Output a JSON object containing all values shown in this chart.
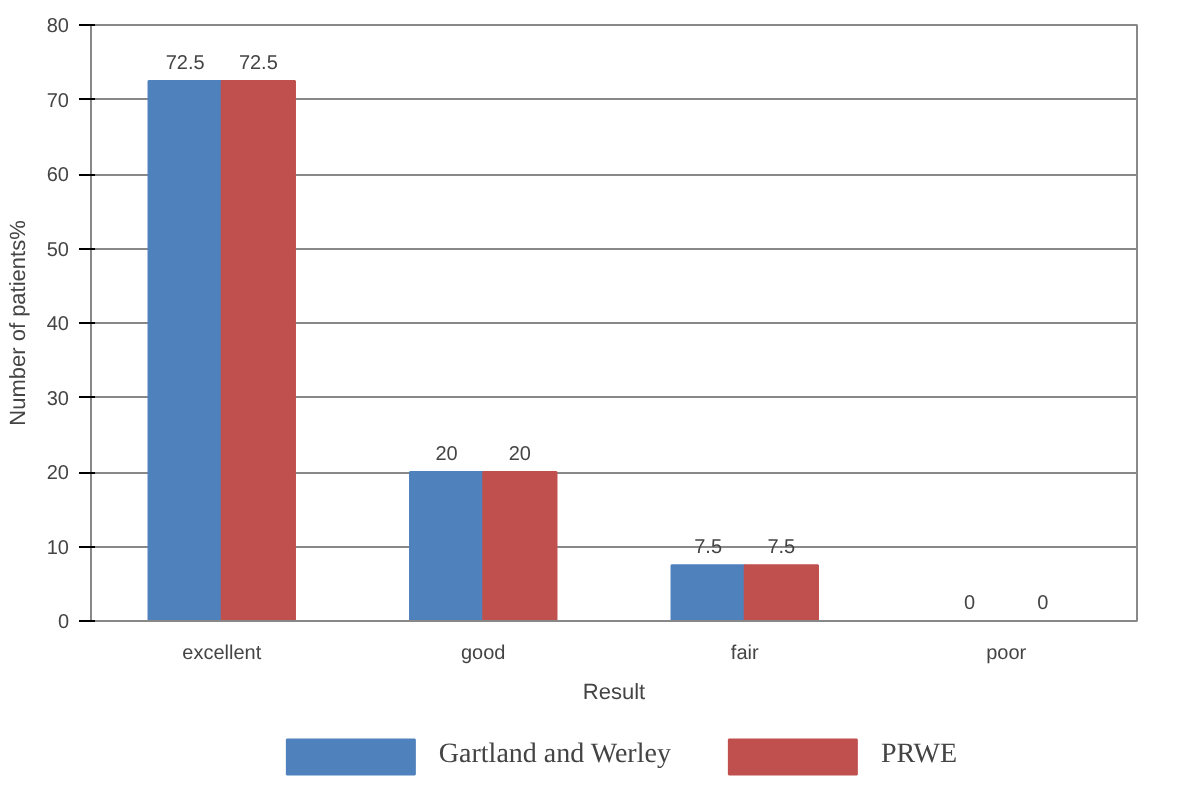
{
  "chart_data": {
    "type": "bar",
    "xlabel": "Result",
    "ylabel": "Number of patients%",
    "categories": [
      "excellent",
      "good",
      "fair",
      "poor"
    ],
    "series": [
      {
        "name": "Gartland and Werley",
        "color": "#4f81bd",
        "values": [
          72.5,
          20,
          7.5,
          0
        ]
      },
      {
        "name": "PRWE",
        "color": "#c0504d",
        "values": [
          72.5,
          20,
          7.5,
          0
        ]
      }
    ],
    "ylim": [
      0,
      80
    ],
    "yticks": [
      0,
      10,
      20,
      30,
      40,
      50,
      60,
      70,
      80
    ],
    "grid": "y",
    "legend": "bottom",
    "data_labels": true
  }
}
